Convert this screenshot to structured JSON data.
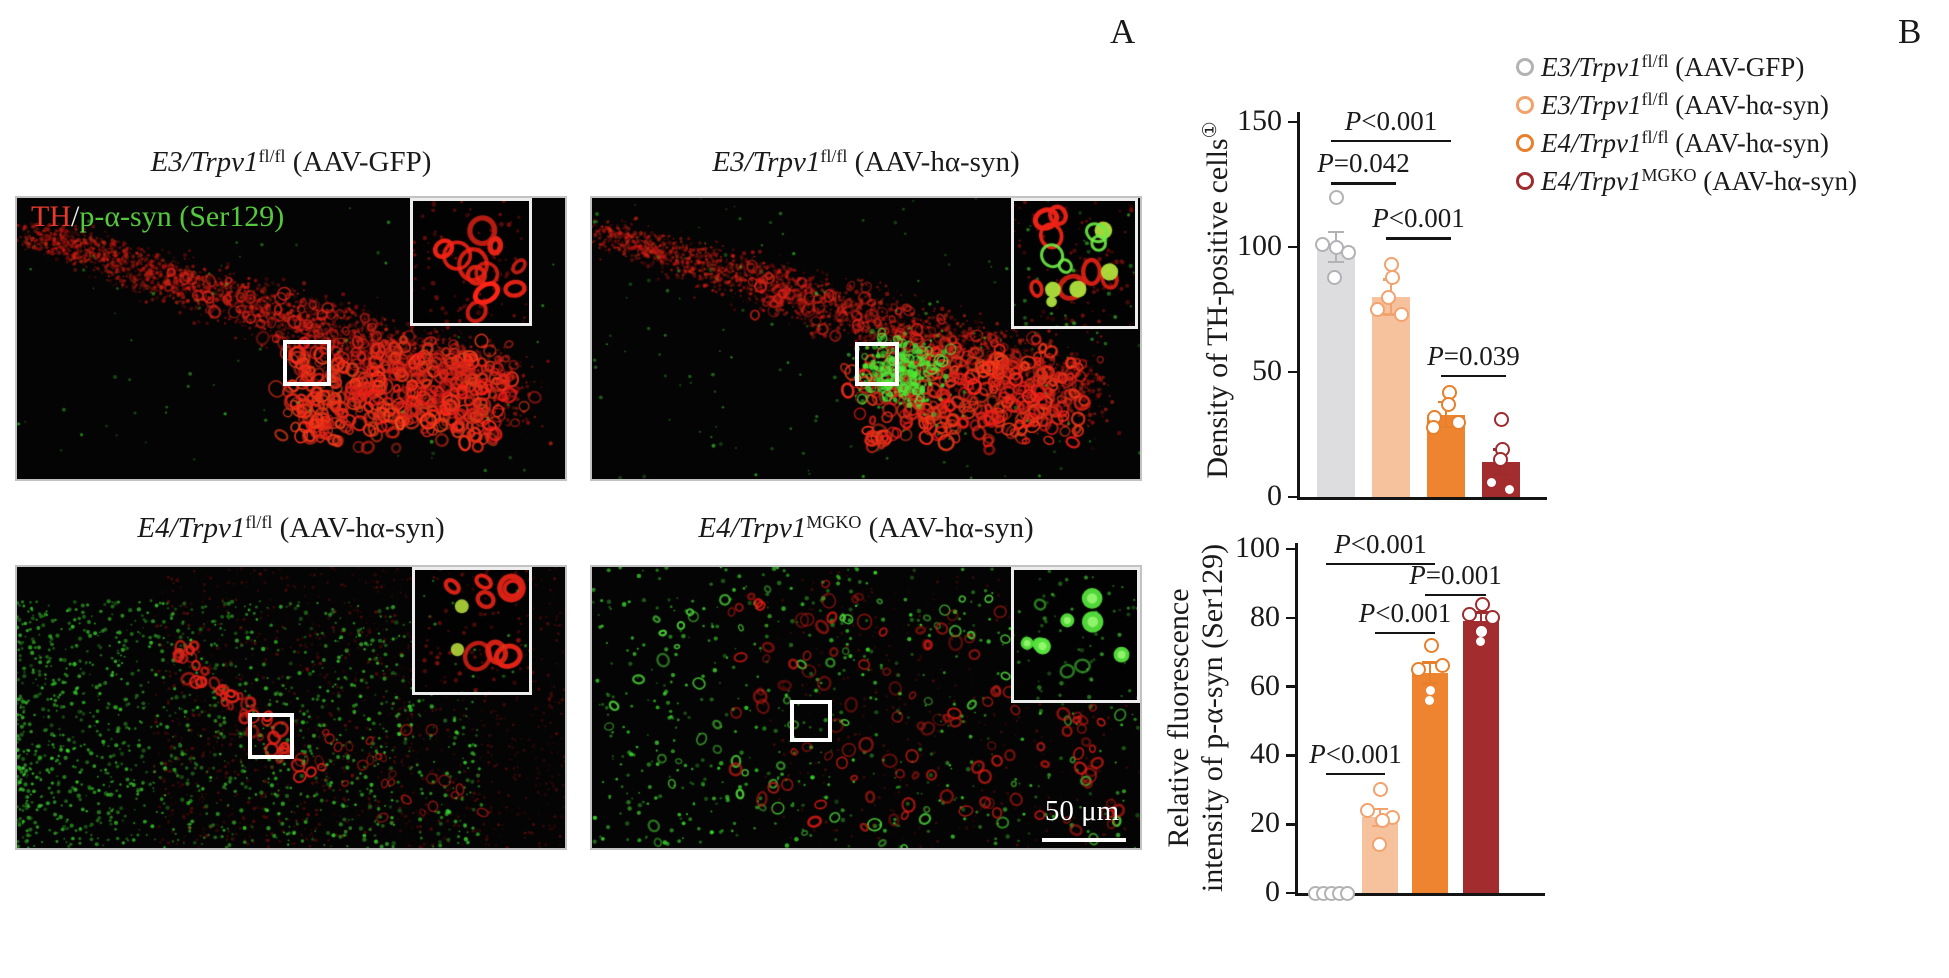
{
  "figure": {
    "panel_a_label": "A",
    "panel_b_label": "B"
  },
  "micrographs": {
    "stain_label": {
      "th": "TH",
      "slash": "/",
      "psyn": "p-α-syn (Ser129)"
    },
    "scale_bar_label": "50 μm",
    "panels": [
      {
        "title": {
          "italic": "E3/Trpv1",
          "sup": "fl/fl",
          "rest": " (AAV-GFP)"
        }
      },
      {
        "title": {
          "italic": "E3/Trpv1",
          "sup": "fl/fl",
          "rest": " (AAV-hα-syn)"
        }
      },
      {
        "title": {
          "italic": "E4/Trpv1",
          "sup": "fl/fl",
          "rest": " (AAV-hα-syn)"
        }
      },
      {
        "title": {
          "italic": "E4/Trpv1",
          "sup": "MGKO",
          "rest": " (AAV-hα-syn)"
        }
      }
    ]
  },
  "legend": {
    "items": [
      {
        "marker_color": "#b2b2b5",
        "italic": "E3/Trpv1",
        "sup": "fl/fl",
        "rest": " (AAV-GFP)"
      },
      {
        "marker_color": "#f2a26d",
        "italic": "E3/Trpv1",
        "sup": "fl/fl",
        "rest": " (AAV-hα-syn)"
      },
      {
        "marker_color": "#e87f2b",
        "italic": "E4/Trpv1",
        "sup": "fl/fl",
        "rest": " (AAV-hα-syn)"
      },
      {
        "marker_color": "#9e2b2d",
        "italic": "E4/Trpv1",
        "sup": "MGKO",
        "rest": " (AAV-hα-syn)"
      }
    ]
  },
  "chart_data": [
    {
      "type": "bar",
      "ylabel_lines": [
        "Density of TH-positive cells①"
      ],
      "ylim": [
        0,
        150
      ],
      "yticks": [
        0,
        50,
        100,
        150
      ],
      "grid": false,
      "legend_position": "top-right",
      "groups": [
        "E3/Trpv1 fl/fl (AAV-GFP)",
        "E3/Trpv1 fl/fl (AAV-hα-syn)",
        "E4/Trpv1 fl/fl (AAV-hα-syn)",
        "E4/Trpv1 MGKO (AAV-hα-syn)"
      ],
      "bar_means": [
        100,
        80,
        33,
        14
      ],
      "error_upper": [
        6,
        7,
        5,
        5
      ],
      "points": [
        [
          120,
          101,
          100,
          98,
          88
        ],
        [
          93,
          88,
          80,
          75,
          73
        ],
        [
          42,
          37,
          32,
          30,
          28
        ],
        [
          31,
          19,
          15,
          6,
          3
        ]
      ],
      "bar_colors": [
        "#dddddf",
        "#f6c29e",
        "#ee8330",
        "#a32c2e"
      ],
      "point_colors": [
        "#b2b2b5",
        "#f2a26d",
        "#e87f2b",
        "#9e2b2d"
      ],
      "significance": [
        {
          "label": "P<0.001",
          "from": 0,
          "to": 2,
          "y": 143
        },
        {
          "label": "P=0.042",
          "from": 0,
          "to": 1,
          "y": 126
        },
        {
          "label": "P<0.001",
          "from": 1,
          "to": 2,
          "y": 104
        },
        {
          "label": "P=0.039",
          "from": 2,
          "to": 3,
          "y": 49
        }
      ]
    },
    {
      "type": "bar",
      "ylabel_lines": [
        "Relative fluorescence",
        "intensity of p-α-syn (Ser129)"
      ],
      "ylim": [
        0,
        100
      ],
      "yticks": [
        0,
        20,
        40,
        60,
        80,
        100
      ],
      "grid": false,
      "groups": [
        "E3/Trpv1 fl/fl (AAV-GFP)",
        "E3/Trpv1 fl/fl (AAV-hα-syn)",
        "E4/Trpv1 fl/fl (AAV-hα-syn)",
        "E4/Trpv1 MGKO (AAV-hα-syn)"
      ],
      "bar_means": [
        0,
        22,
        64,
        79
      ],
      "error_upper": [
        0,
        2.5,
        3,
        2.5
      ],
      "points": [
        [
          0,
          0,
          0,
          0,
          0
        ],
        [
          30,
          24,
          22,
          21,
          14
        ],
        [
          72,
          66,
          65,
          59,
          56
        ],
        [
          84,
          81,
          80,
          76,
          73
        ]
      ],
      "bar_colors": [
        "#dddddf",
        "#f6c29e",
        "#ee8330",
        "#a32c2e"
      ],
      "point_colors": [
        "#b2b2b5",
        "#f2a26d",
        "#e87f2b",
        "#9e2b2d"
      ],
      "significance": [
        {
          "label": "P<0.001",
          "from": 0,
          "to": 2,
          "y": 96
        },
        {
          "label": "P=0.001",
          "from": 2,
          "to": 3,
          "y": 87
        },
        {
          "label": "P<0.001",
          "from": 1,
          "to": 2,
          "y": 76
        },
        {
          "label": "P<0.001",
          "from": 0,
          "to": 1,
          "y": 35
        }
      ]
    }
  ]
}
